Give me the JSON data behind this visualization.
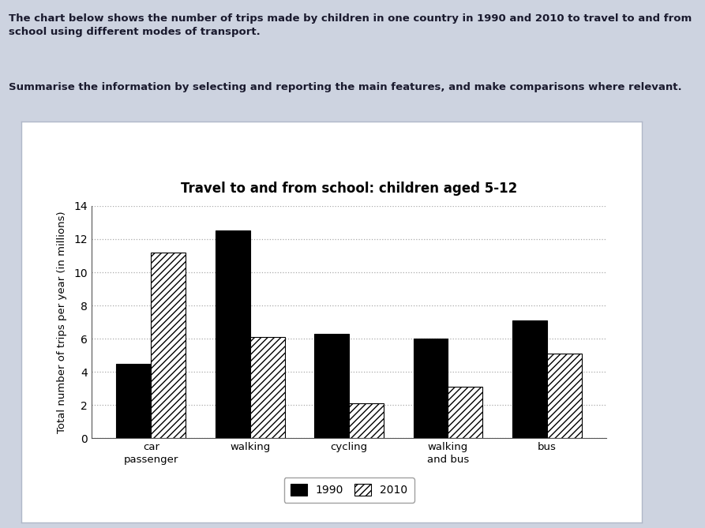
{
  "title": "Travel to and from school: children aged 5-12",
  "ylabel": "Total number of trips per year (in millions)",
  "categories": [
    "car\npassenger",
    "walking",
    "cycling",
    "walking\nand bus",
    "bus"
  ],
  "values_1990": [
    4.5,
    12.5,
    6.3,
    6.0,
    7.1
  ],
  "values_2010": [
    11.2,
    6.1,
    2.1,
    3.1,
    5.1
  ],
  "ylim": [
    0,
    14
  ],
  "yticks": [
    0,
    2,
    4,
    6,
    8,
    10,
    12,
    14
  ],
  "color_1990": "#000000",
  "color_2010": "#ffffff",
  "legend_labels": [
    "1990",
    "2010"
  ],
  "bg_color": "#cdd3e0",
  "panel_color": "#ffffff",
  "header_line1": "The chart below shows the number of trips made by children in one country in 1990 and 2010 to travel to and from\nschool using different modes of transport.",
  "header_line2": "Summarise the information by selecting and reporting the main features, and make comparisons where relevant.",
  "grid_color": "#aaaaaa",
  "grid_style": "dotted"
}
